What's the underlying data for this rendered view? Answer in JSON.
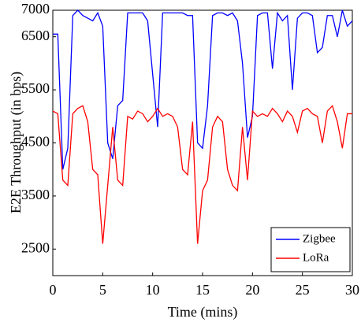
{
  "chart_data": {
    "type": "line",
    "xlabel": "Time (mins)",
    "ylabel": "E2E Throughput (in bps)",
    "x": [
      0,
      0.5,
      1,
      1.5,
      2,
      2.5,
      3,
      3.5,
      4,
      4.5,
      5,
      5.5,
      6,
      6.5,
      7,
      7.5,
      8,
      8.5,
      9,
      9.5,
      10,
      10.5,
      11,
      11.5,
      12,
      12.5,
      13,
      13.5,
      14,
      14.5,
      15,
      15.5,
      16,
      16.5,
      17,
      17.5,
      18,
      18.5,
      19,
      19.5,
      20,
      20.5,
      21,
      21.5,
      22,
      22.5,
      23,
      23.5,
      24,
      24.5,
      25,
      25.5,
      26,
      26.5,
      27,
      27.5,
      28,
      28.5,
      29,
      29.5,
      30
    ],
    "series": [
      {
        "name": "Zigbee",
        "color": "#0000ff",
        "values": [
          6550,
          6550,
          4000,
          4400,
          6900,
          7000,
          6900,
          6850,
          6800,
          6950,
          6700,
          4500,
          4200,
          5200,
          5300,
          6950,
          6950,
          6950,
          6950,
          6800,
          5800,
          4800,
          6950,
          6950,
          6950,
          6950,
          6950,
          6900,
          6900,
          4500,
          4400,
          5200,
          6900,
          6950,
          6950,
          6900,
          6950,
          6800,
          6000,
          4600,
          5000,
          6900,
          6950,
          6950,
          5900,
          6950,
          6800,
          6900,
          5500,
          6850,
          6950,
          6950,
          6900,
          6200,
          6300,
          6900,
          6900,
          6500,
          7000,
          6700,
          6800
        ]
      },
      {
        "name": "LoRa",
        "color": "#ff0000",
        "values": [
          5100,
          5050,
          3800,
          3700,
          5050,
          5150,
          5200,
          4900,
          4000,
          3900,
          2600,
          3700,
          4800,
          3800,
          3700,
          5000,
          4950,
          5100,
          5050,
          4900,
          5000,
          5150,
          5000,
          5050,
          5000,
          4800,
          4000,
          3900,
          4900,
          2600,
          3600,
          3800,
          4800,
          5000,
          4900,
          4000,
          3700,
          3600,
          4800,
          3800,
          5100,
          5000,
          5050,
          5000,
          5150,
          5050,
          4900,
          5100,
          5000,
          4700,
          5100,
          5150,
          5050,
          5000,
          4500,
          5100,
          5200,
          4900,
          4400,
          5050,
          5050
        ]
      }
    ],
    "xlim": [
      0,
      30
    ],
    "xticks": [
      0,
      5,
      10,
      15,
      20,
      25,
      30
    ],
    "ylim": [
      2000,
      7000
    ],
    "yticks": [
      2500,
      3500,
      4500,
      5500,
      6500,
      7000
    ],
    "legend": "lower right"
  }
}
